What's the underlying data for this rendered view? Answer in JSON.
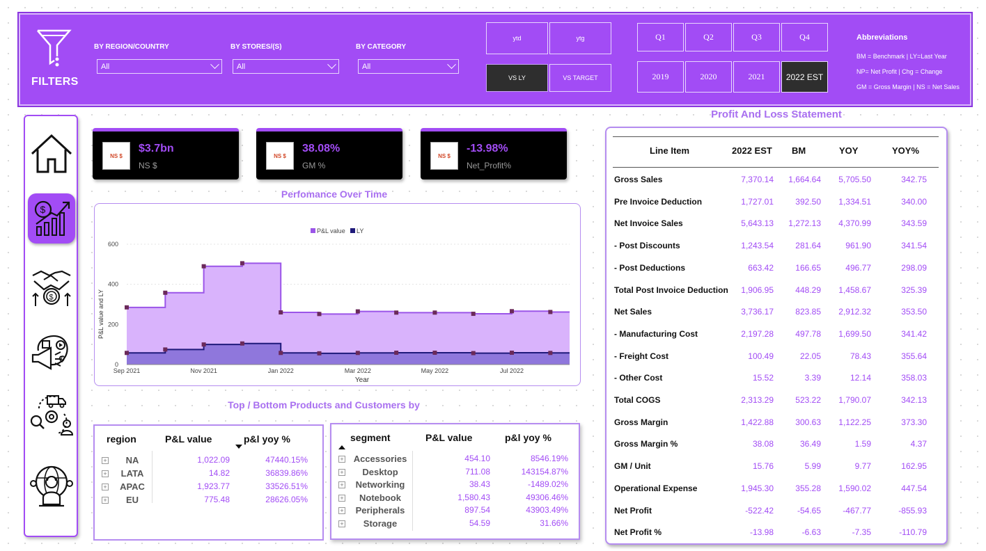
{
  "filters": {
    "title": "FILTERS",
    "dropdowns": [
      {
        "label": "BY REGION/COUNTRY",
        "value": "All"
      },
      {
        "label": "BY STORES/(S)",
        "value": "All"
      },
      {
        "label": "BY CATEGORY",
        "value": "All"
      }
    ],
    "period_buttons": [
      "ytd",
      "ytg"
    ],
    "compare_buttons": [
      "VS LY",
      "VS TARGET"
    ],
    "quarters": [
      "Q1",
      "Q2",
      "Q3",
      "Q4"
    ],
    "years": [
      "2019",
      "2020",
      "2021",
      "2022 EST"
    ],
    "selected_year": "2022 EST",
    "selected_compare": "VS LY"
  },
  "abbreviations": {
    "title": "Abbreviations",
    "lines": [
      "BM = Benchmark | LY=Last Year",
      "NP= Net Profit | Chg = Change",
      "GM = Gross Margin | NS = Net Sales"
    ]
  },
  "nav": {
    "items": [
      "home-icon",
      "finance-growth-icon",
      "handshake-money-icon",
      "marketing-megaphone-icon",
      "supply-chain-icon",
      "global-support-icon"
    ],
    "active_index": 1
  },
  "kpis": [
    {
      "icon_text": "NS $",
      "value": "$3.7bn",
      "label": "NS $"
    },
    {
      "icon_text": "NS $",
      "value": "38.08%",
      "label": "GM %"
    },
    {
      "icon_text": "NS $",
      "value": "-13.98%",
      "label": "Net_Profit%"
    }
  ],
  "colors": {
    "accent": "#a24cf5",
    "pl_fill": "#d9b3fc",
    "pl_line": "#9b55e8",
    "ly_fill": "#8f77dc",
    "ly_line": "#1f1a7a"
  },
  "performance": {
    "title": "Perfomance Over Time",
    "chart_data": {
      "type": "area",
      "step": true,
      "xlabel": "Year",
      "ylabel": "P&L value and LY",
      "ylim": [
        0,
        600
      ],
      "yticks": [
        0,
        200,
        400,
        600
      ],
      "xticks": [
        "Sep 2021",
        "Nov 2021",
        "Jan 2022",
        "Mar 2022",
        "May 2022",
        "Jul 2022"
      ],
      "legend_position": "top-center",
      "months": [
        "2021-09",
        "2021-10",
        "2021-11",
        "2021-12",
        "2022-01",
        "2022-02",
        "2022-03",
        "2022-04",
        "2022-05",
        "2022-06",
        "2022-07",
        "2022-08"
      ],
      "series": [
        {
          "name": "P&L value",
          "values": [
            285,
            358,
            490,
            505,
            260,
            252,
            265,
            259,
            259,
            253,
            266,
            262
          ]
        },
        {
          "name": "LY",
          "values": [
            58,
            75,
            100,
            105,
            58,
            56,
            58,
            59,
            59,
            57,
            59,
            58
          ]
        }
      ]
    }
  },
  "top_bottom": {
    "title": "Top / Bottom Products and Customers by",
    "region_table": {
      "headers": [
        "region",
        "P&L value",
        "p&l yoy %"
      ],
      "rows": [
        [
          "NA",
          "1,022.09",
          "47440.15%"
        ],
        [
          "LATA",
          "14.82",
          "36839.86%"
        ],
        [
          "APAC",
          "1,923.77",
          "33526.51%"
        ],
        [
          "EU",
          "775.48",
          "28626.05%"
        ]
      ]
    },
    "segment_table": {
      "headers": [
        "segment",
        "P&L value",
        "p&l yoy %"
      ],
      "rows": [
        [
          "Accessories",
          "454.10",
          "8546.19%"
        ],
        [
          "Desktop",
          "711.08",
          "143154.87%"
        ],
        [
          "Networking",
          "38.43",
          "-1489.02%"
        ],
        [
          "Notebook",
          "1,580.43",
          "49306.46%"
        ],
        [
          "Peripherals",
          "897.54",
          "43903.49%"
        ],
        [
          "Storage",
          "54.59",
          "31.66%"
        ]
      ]
    }
  },
  "pnl": {
    "title": "Profit And Loss Statement",
    "headers": [
      "Line Item",
      "2022 EST",
      "BM",
      "YOY",
      "YOY%"
    ],
    "rows": [
      [
        "Gross Sales",
        "7,370.14",
        "1,664.64",
        "5,705.50",
        "342.75"
      ],
      [
        "Pre Invoice Deduction",
        "1,727.01",
        "392.50",
        "1,334.51",
        "340.00"
      ],
      [
        "Net Invoice Sales",
        "5,643.13",
        "1,272.13",
        "4,370.99",
        "343.59"
      ],
      [
        "- Post Discounts",
        "1,243.54",
        "281.64",
        "961.90",
        "341.54"
      ],
      [
        "- Post Deductions",
        "663.42",
        "166.65",
        "496.77",
        "298.09"
      ],
      [
        "Total Post Invoice Deduction",
        "1,906.95",
        "448.29",
        "1,458.67",
        "325.39"
      ],
      [
        "Net Sales",
        "3,736.17",
        "823.85",
        "2,912.32",
        "353.50"
      ],
      [
        "- Manufacturing Cost",
        "2,197.28",
        "497.78",
        "1,699.50",
        "341.42"
      ],
      [
        "- Freight Cost",
        "100.49",
        "22.05",
        "78.43",
        "355.64"
      ],
      [
        "- Other Cost",
        "15.52",
        "3.39",
        "12.14",
        "358.03"
      ],
      [
        "Total COGS",
        "2,313.29",
        "523.22",
        "1,790.07",
        "342.13"
      ],
      [
        "Gross Margin",
        "1,422.88",
        "300.63",
        "1,122.25",
        "373.30"
      ],
      [
        "Gross Margin %",
        "38.08",
        "36.49",
        "1.59",
        "4.37"
      ],
      [
        "GM / Unit",
        "15.76",
        "5.99",
        "9.77",
        "162.95"
      ],
      [
        "Operational Expense",
        "1,945.30",
        "355.28",
        "1,590.02",
        "447.54"
      ],
      [
        "Net Profit",
        "-522.42",
        "-54.65",
        "-467.77",
        "-855.93"
      ],
      [
        "Net Profit %",
        "-13.98",
        "-6.63",
        "-7.35",
        "-110.79"
      ]
    ]
  }
}
